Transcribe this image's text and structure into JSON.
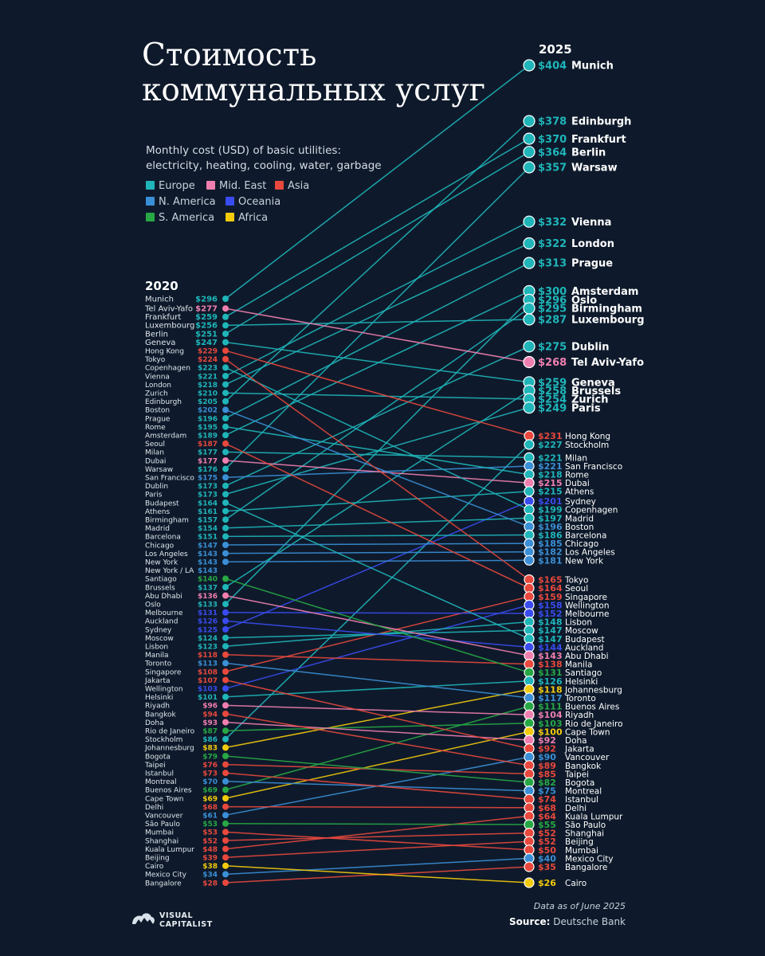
{
  "title_line1": "Стоимость",
  "title_line2": "коммунальных услуг",
  "subtitle_line1": "Monthly cost (USD) of basic utilities:",
  "subtitle_line2": "electricity, heating, cooling, water, garbage",
  "legend": [
    {
      "label": "Europe",
      "color": "#1fb5b9"
    },
    {
      "label": "Mid. East",
      "color": "#f07fb0"
    },
    {
      "label": "Asia",
      "color": "#e8483d"
    },
    {
      "label": "N. America",
      "color": "#3b8fd6"
    },
    {
      "label": "Oceania",
      "color": "#3a4bf0"
    },
    {
      "label": "S. America",
      "color": "#27a845"
    },
    {
      "label": "Africa",
      "color": "#f3cb0c"
    }
  ],
  "footer": {
    "note": "Data as of June 2025",
    "source_label": "Source:",
    "source_value": "Deutsche Bank",
    "logo_line1": "VISUAL",
    "logo_line2": "CAPITALIST"
  },
  "chart_data": {
    "type": "slope",
    "title": "Стоимость коммунальных услуг",
    "subtitle": "Monthly cost (USD) of basic utilities: electricity, heating, cooling, water, garbage",
    "left_label": "2020",
    "right_label": "2025",
    "unit": "USD",
    "colors": {
      "Europe": "#1fb5b9",
      "Mid. East": "#f07fb0",
      "Asia": "#e8483d",
      "N. America": "#3b8fd6",
      "Oceania": "#3a4bf0",
      "S. America": "#27a845",
      "Africa": "#f3cb0c"
    },
    "left_only": [
      {
        "city": "New York / LA",
        "v2020": 143,
        "region": "N. America"
      }
    ],
    "cities": [
      {
        "city": "Munich",
        "region": "Europe",
        "v2020": 296,
        "v2025": 404
      },
      {
        "city": "Edinburgh",
        "region": "Europe",
        "v2020": 205,
        "v2025": 378
      },
      {
        "city": "Frankfurt",
        "region": "Europe",
        "v2020": 259,
        "v2025": 370
      },
      {
        "city": "Berlin",
        "region": "Europe",
        "v2020": 251,
        "v2025": 364
      },
      {
        "city": "Warsaw",
        "region": "Europe",
        "v2020": 176,
        "v2025": 357
      },
      {
        "city": "Vienna",
        "region": "Europe",
        "v2020": 221,
        "v2025": 332
      },
      {
        "city": "London",
        "region": "Europe",
        "v2020": 218,
        "v2025": 322
      },
      {
        "city": "Prague",
        "region": "Europe",
        "v2020": 196,
        "v2025": 313
      },
      {
        "city": "Amsterdam",
        "region": "Europe",
        "v2020": 189,
        "v2025": 300
      },
      {
        "city": "Oslo",
        "region": "Europe",
        "v2020": 133,
        "v2025": 296
      },
      {
        "city": "Birmingham",
        "region": "Europe",
        "v2020": 157,
        "v2025": 295
      },
      {
        "city": "Luxembourg",
        "region": "Europe",
        "v2020": 256,
        "v2025": 287
      },
      {
        "city": "Dublin",
        "region": "Europe",
        "v2020": 173,
        "v2025": 275
      },
      {
        "city": "Tel Aviv-Yafo",
        "region": "Mid. East",
        "v2020": 277,
        "v2025": 268
      },
      {
        "city": "Geneva",
        "region": "Europe",
        "v2020": 247,
        "v2025": 259
      },
      {
        "city": "Brussels",
        "region": "Europe",
        "v2020": 137,
        "v2025": 258
      },
      {
        "city": "Zurich",
        "region": "Europe",
        "v2020": 210,
        "v2025": 254
      },
      {
        "city": "Paris",
        "region": "Europe",
        "v2020": 173,
        "v2025": 249
      },
      {
        "city": "Hong Kong",
        "region": "Asia",
        "v2020": 229,
        "v2025": 231
      },
      {
        "city": "Stockholm",
        "region": "Europe",
        "v2020": 86,
        "v2025": 227
      },
      {
        "city": "Milan",
        "region": "Europe",
        "v2020": 177,
        "v2025": 221
      },
      {
        "city": "San Francisco",
        "region": "N. America",
        "v2020": 175,
        "v2025": 221
      },
      {
        "city": "Rome",
        "region": "Europe",
        "v2020": 195,
        "v2025": 218
      },
      {
        "city": "Dubai",
        "region": "Mid. East",
        "v2020": 177,
        "v2025": 215
      },
      {
        "city": "Athens",
        "region": "Europe",
        "v2020": 161,
        "v2025": 215
      },
      {
        "city": "Sydney",
        "region": "Oceania",
        "v2020": 125,
        "v2025": 201
      },
      {
        "city": "Copenhagen",
        "region": "Europe",
        "v2020": 223,
        "v2025": 199
      },
      {
        "city": "Madrid",
        "region": "Europe",
        "v2020": 154,
        "v2025": 197
      },
      {
        "city": "Boston",
        "region": "N. America",
        "v2020": 202,
        "v2025": 196
      },
      {
        "city": "Barcelona",
        "region": "Europe",
        "v2020": 151,
        "v2025": 186
      },
      {
        "city": "Chicago",
        "region": "N. America",
        "v2020": 147,
        "v2025": 185
      },
      {
        "city": "Los Angeles",
        "region": "N. America",
        "v2020": 143,
        "v2025": 182
      },
      {
        "city": "New York",
        "region": "N. America",
        "v2020": 143,
        "v2025": 181
      },
      {
        "city": "Tokyo",
        "region": "Asia",
        "v2020": 224,
        "v2025": 165
      },
      {
        "city": "Seoul",
        "region": "Asia",
        "v2020": 187,
        "v2025": 164
      },
      {
        "city": "Singapore",
        "region": "Asia",
        "v2020": 108,
        "v2025": 159
      },
      {
        "city": "Wellington",
        "region": "Oceania",
        "v2020": 103,
        "v2025": 158
      },
      {
        "city": "Melbourne",
        "region": "Oceania",
        "v2020": 131,
        "v2025": 152
      },
      {
        "city": "Lisbon",
        "region": "Europe",
        "v2020": 123,
        "v2025": 148
      },
      {
        "city": "Moscow",
        "region": "Europe",
        "v2020": 124,
        "v2025": 147
      },
      {
        "city": "Budapest",
        "region": "Europe",
        "v2020": 164,
        "v2025": 147
      },
      {
        "city": "Auckland",
        "region": "Oceania",
        "v2020": 126,
        "v2025": 144
      },
      {
        "city": "Abu Dhabi",
        "region": "Mid. East",
        "v2020": 136,
        "v2025": 143
      },
      {
        "city": "Manila",
        "region": "Asia",
        "v2020": 118,
        "v2025": 138
      },
      {
        "city": "Santiago",
        "region": "S. America",
        "v2020": 140,
        "v2025": 131
      },
      {
        "city": "Helsinki",
        "region": "Europe",
        "v2020": 101,
        "v2025": 126
      },
      {
        "city": "Johannesburg",
        "region": "Africa",
        "v2020": 83,
        "v2025": 118
      },
      {
        "city": "Toronto",
        "region": "N. America",
        "v2020": 113,
        "v2025": 117
      },
      {
        "city": "Buenos Aires",
        "region": "S. America",
        "v2020": 69,
        "v2025": 111
      },
      {
        "city": "Riyadh",
        "region": "Mid. East",
        "v2020": 96,
        "v2025": 104
      },
      {
        "city": "Rio de Janeiro",
        "region": "S. America",
        "v2020": 87,
        "v2025": 103
      },
      {
        "city": "Cape Town",
        "region": "Africa",
        "v2020": 69,
        "v2025": 100
      },
      {
        "city": "Doha",
        "region": "Mid. East",
        "v2020": 93,
        "v2025": 92
      },
      {
        "city": "Jakarta",
        "region": "Asia",
        "v2020": 107,
        "v2025": 92
      },
      {
        "city": "Vancouver",
        "region": "N. America",
        "v2020": 61,
        "v2025": 90
      },
      {
        "city": "Bangkok",
        "region": "Asia",
        "v2020": 94,
        "v2025": 89
      },
      {
        "city": "Taipei",
        "region": "Asia",
        "v2020": 76,
        "v2025": 85
      },
      {
        "city": "Bogota",
        "region": "S. America",
        "v2020": 79,
        "v2025": 82
      },
      {
        "city": "Montreal",
        "region": "N. America",
        "v2020": 70,
        "v2025": 75
      },
      {
        "city": "Istanbul",
        "region": "Asia",
        "v2020": 73,
        "v2025": 74
      },
      {
        "city": "Delhi",
        "region": "Asia",
        "v2020": 68,
        "v2025": 68
      },
      {
        "city": "Kuala Lumpur",
        "region": "Asia",
        "v2020": 48,
        "v2025": 64
      },
      {
        "city": "São Paulo",
        "region": "S. America",
        "v2020": 53,
        "v2025": 55
      },
      {
        "city": "Shanghai",
        "region": "Asia",
        "v2020": 52,
        "v2025": 52
      },
      {
        "city": "Beijing",
        "region": "Asia",
        "v2020": 39,
        "v2025": 52
      },
      {
        "city": "Mumbai",
        "region": "Asia",
        "v2020": 53,
        "v2025": 50
      },
      {
        "city": "Mexico City",
        "region": "N. America",
        "v2020": 34,
        "v2025": 40
      },
      {
        "city": "Bangalore",
        "region": "Asia",
        "v2020": 28,
        "v2025": 35
      },
      {
        "city": "Cairo",
        "region": "Africa",
        "v2020": 38,
        "v2025": 26
      }
    ]
  }
}
